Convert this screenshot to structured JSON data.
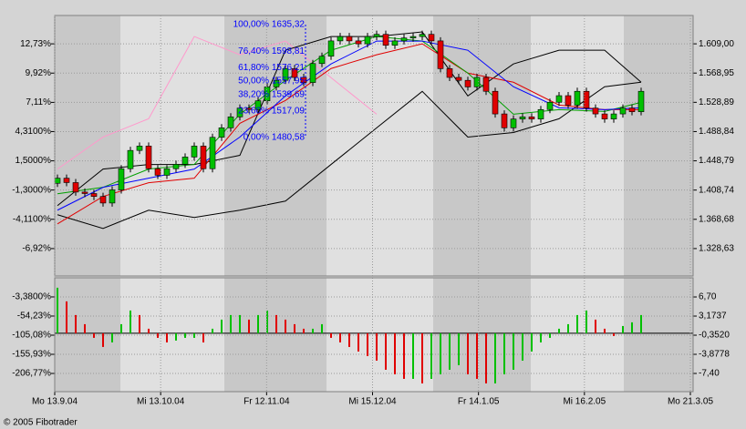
{
  "chart_data": [
    {
      "type": "candlestick",
      "ylim": [
        1291.1,
        1647.8
      ],
      "yticks": [
        {
          "value": 1609.0,
          "label": "1.609,00"
        },
        {
          "value": 1568.95,
          "label": "1.568,95"
        },
        {
          "value": 1528.89,
          "label": "1.528,89"
        },
        {
          "value": 1488.84,
          "label": "1.488,84"
        },
        {
          "value": 1448.79,
          "label": "1.448,79"
        },
        {
          "value": 1408.74,
          "label": "1.408,74"
        },
        {
          "value": 1368.68,
          "label": "1.368,68"
        },
        {
          "value": 1328.63,
          "label": "1.328,63"
        }
      ],
      "y2lim": [
        -9.55,
        15.45
      ],
      "y2ticks": [
        {
          "value": 12.73,
          "label": "12,73%"
        },
        {
          "value": 9.92,
          "label": "9,92%"
        },
        {
          "value": 7.11,
          "label": "7,11%"
        },
        {
          "value": 4.31,
          "label": "4,3100%"
        },
        {
          "value": 1.5,
          "label": "1,5000%"
        },
        {
          "value": -1.3,
          "label": "-1,3000%"
        },
        {
          "value": -4.11,
          "label": "-4,1100%"
        },
        {
          "value": -6.92,
          "label": "-6,92%"
        }
      ],
      "up_color": "#00c000",
      "down_color": "#e00000",
      "open": [
        1418,
        1425,
        1419,
        1406,
        1404,
        1400,
        1391,
        1409,
        1438,
        1463,
        1469,
        1438,
        1429,
        1438,
        1444,
        1454,
        1469,
        1438,
        1481,
        1494,
        1509,
        1521,
        1519,
        1531,
        1550,
        1559,
        1575,
        1563,
        1556,
        1582,
        1592,
        1613,
        1619,
        1613,
        1609,
        1619,
        1622,
        1607,
        1613,
        1617,
        1619,
        1622,
        1613,
        1575,
        1563,
        1559,
        1550,
        1563,
        1544,
        1513,
        1494,
        1506,
        1509,
        1506,
        1519,
        1529,
        1538,
        1525,
        1544,
        1521,
        1513,
        1506,
        1513,
        1521,
        1516
      ],
      "high": [
        1430,
        1430,
        1424,
        1411,
        1409,
        1405,
        1414,
        1443,
        1468,
        1474,
        1474,
        1443,
        1443,
        1449,
        1459,
        1474,
        1474,
        1486,
        1499,
        1514,
        1526,
        1526,
        1536,
        1555,
        1564,
        1580,
        1580,
        1568,
        1587,
        1597,
        1618,
        1624,
        1624,
        1618,
        1624,
        1627,
        1627,
        1618,
        1622,
        1624,
        1627,
        1627,
        1618,
        1580,
        1568,
        1564,
        1568,
        1568,
        1549,
        1518,
        1511,
        1514,
        1514,
        1524,
        1534,
        1543,
        1543,
        1549,
        1549,
        1526,
        1518,
        1518,
        1526,
        1526,
        1549
      ],
      "low": [
        1413,
        1414,
        1401,
        1399,
        1395,
        1386,
        1386,
        1404,
        1433,
        1458,
        1433,
        1424,
        1424,
        1433,
        1439,
        1449,
        1433,
        1433,
        1476,
        1489,
        1504,
        1514,
        1514,
        1526,
        1545,
        1554,
        1558,
        1551,
        1551,
        1577,
        1587,
        1608,
        1608,
        1604,
        1604,
        1614,
        1602,
        1602,
        1608,
        1612,
        1614,
        1608,
        1570,
        1558,
        1554,
        1545,
        1545,
        1539,
        1508,
        1489,
        1489,
        1501,
        1501,
        1501,
        1514,
        1524,
        1520,
        1520,
        1516,
        1508,
        1501,
        1501,
        1508,
        1511,
        1511
      ],
      "close": [
        1425,
        1419,
        1406,
        1404,
        1400,
        1391,
        1409,
        1438,
        1463,
        1469,
        1438,
        1429,
        1438,
        1444,
        1454,
        1469,
        1438,
        1481,
        1494,
        1509,
        1521,
        1519,
        1531,
        1550,
        1559,
        1575,
        1563,
        1556,
        1582,
        1592,
        1613,
        1619,
        1613,
        1609,
        1619,
        1622,
        1607,
        1613,
        1617,
        1619,
        1622,
        1613,
        1575,
        1563,
        1559,
        1550,
        1563,
        1544,
        1513,
        1494,
        1506,
        1509,
        1506,
        1519,
        1529,
        1538,
        1525,
        1544,
        1521,
        1513,
        1506,
        1513,
        1521,
        1516,
        1544
      ],
      "line_x": [
        0,
        5,
        10,
        15,
        20,
        25,
        30,
        35,
        40,
        45,
        50,
        55,
        60,
        64
      ],
      "series": [
        {
          "color": "#ff99cc",
          "values": [
            1437.5,
            1481.3,
            1506.4,
            1619.0,
            1594.0,
            1612.8,
            1562.7,
            1512.6,
            null,
            null,
            null,
            null,
            null,
            null
          ]
        },
        {
          "color": "#000000",
          "values": [
            1387.5,
            1437.5,
            1443.8,
            1443.8,
            1456.3,
            1600.2,
            1619.0,
            1619.0,
            1625.3,
            1537.7,
            1581.5,
            1600.2,
            1600.2,
            1556.4
          ]
        },
        {
          "color": "#000000",
          "values": [
            1375.0,
            1356.2,
            1381.2,
            1371.2,
            1381.2,
            1393.7,
            1443.8,
            1493.9,
            1543.9,
            1481.3,
            1487.6,
            1506.4,
            1550.2,
            1556.4
          ]
        },
        {
          "color": "#e00000",
          "values": [
            1362.4,
            1400.0,
            1418.8,
            1425.0,
            1500.1,
            1531.4,
            1575.2,
            1594.0,
            1609.0,
            1568.9,
            1556.4,
            1525.1,
            1518.9,
            1518.9
          ]
        },
        {
          "color": "#00a000",
          "values": [
            1403.7,
            1412.5,
            1437.5,
            1443.8,
            1512.6,
            1558.9,
            1600.2,
            1619.0,
            1612.8,
            1568.9,
            1512.6,
            1518.9,
            1516.4,
            1528.9
          ]
        },
        {
          "color": "#0000ff",
          "values": [
            1381.2,
            1412.5,
            1425.0,
            1437.5,
            1481.3,
            1537.7,
            1581.5,
            1612.8,
            1612.8,
            1600.2,
            1550.2,
            1521.4,
            1518.9,
            1521.4
          ]
        }
      ],
      "fib_levels": [
        {
          "value": 1635.32,
          "label": "100,00% 1635,32"
        },
        {
          "value": 1598.81,
          "label": "76,40% 1598,81"
        },
        {
          "value": 1576.21,
          "label": "61,80% 1576,21"
        },
        {
          "value": 1557.95,
          "label": "50,00% 1557,95"
        },
        {
          "value": 1539.69,
          "label": "38,20% 1539,69"
        },
        {
          "value": 1517.09,
          "label": "23,60% 1517,09"
        },
        {
          "value": 1480.58,
          "label": "0,00% 1480,58"
        }
      ],
      "fib_color": "#0000ff"
    },
    {
      "type": "histogram",
      "ylim": [
        -10.76,
        10.23
      ],
      "yticks": [
        {
          "value": 6.7,
          "label": "6,70"
        },
        {
          "value": 3.1737,
          "label": "3,1737"
        },
        {
          "value": -0.352,
          "label": "-0,3520"
        },
        {
          "value": -3.8778,
          "label": "-3,8778"
        },
        {
          "value": -7.4,
          "label": "-7,40"
        }
      ],
      "y2lim": [
        -255.2,
        47.4
      ],
      "y2ticks": [
        {
          "value": -3.38,
          "label": "-3,3800%"
        },
        {
          "value": -54.23,
          "label": "-54,23%"
        },
        {
          "value": -105.08,
          "label": "-105,08%"
        },
        {
          "value": -155.93,
          "label": "-155,93%"
        },
        {
          "value": -206.77,
          "label": "-206,77%"
        }
      ],
      "up_color": "#00c000",
      "down_color": "#e00000",
      "values": [
        8.4,
        5.88,
        3.36,
        1.68,
        -0.84,
        -2.52,
        -1.68,
        1.68,
        4.2,
        3.36,
        0.84,
        -0.84,
        -1.68,
        -1.34,
        -0.84,
        -0.84,
        -1.68,
        0.84,
        2.52,
        3.36,
        3.36,
        2.52,
        3.36,
        4.2,
        3.36,
        2.52,
        1.68,
        0.84,
        0.84,
        1.68,
        -0.84,
        -1.68,
        -2.52,
        -3.36,
        -4.2,
        -5.04,
        -6.72,
        -7.56,
        -8.4,
        -8.4,
        -9.24,
        -8.4,
        -7.56,
        -6.72,
        -5.88,
        -7.56,
        -8.4,
        -9.24,
        -9.24,
        -7.56,
        -6.72,
        -5.04,
        -3.36,
        -1.68,
        -0.84,
        0.84,
        1.68,
        3.36,
        4.2,
        2.52,
        0.84,
        -0.5,
        1.34,
        2.02,
        3.36
      ],
      "categories": [
        "Mo 13.9.04",
        "Mi 13.10.04",
        "Fr 12.11.04",
        "Mi 15.12.04",
        "Fr 14.1.05",
        "Mi 16.2.05",
        "Mo 21.3.05"
      ]
    }
  ],
  "footer": "© 2005 Fibotrader"
}
